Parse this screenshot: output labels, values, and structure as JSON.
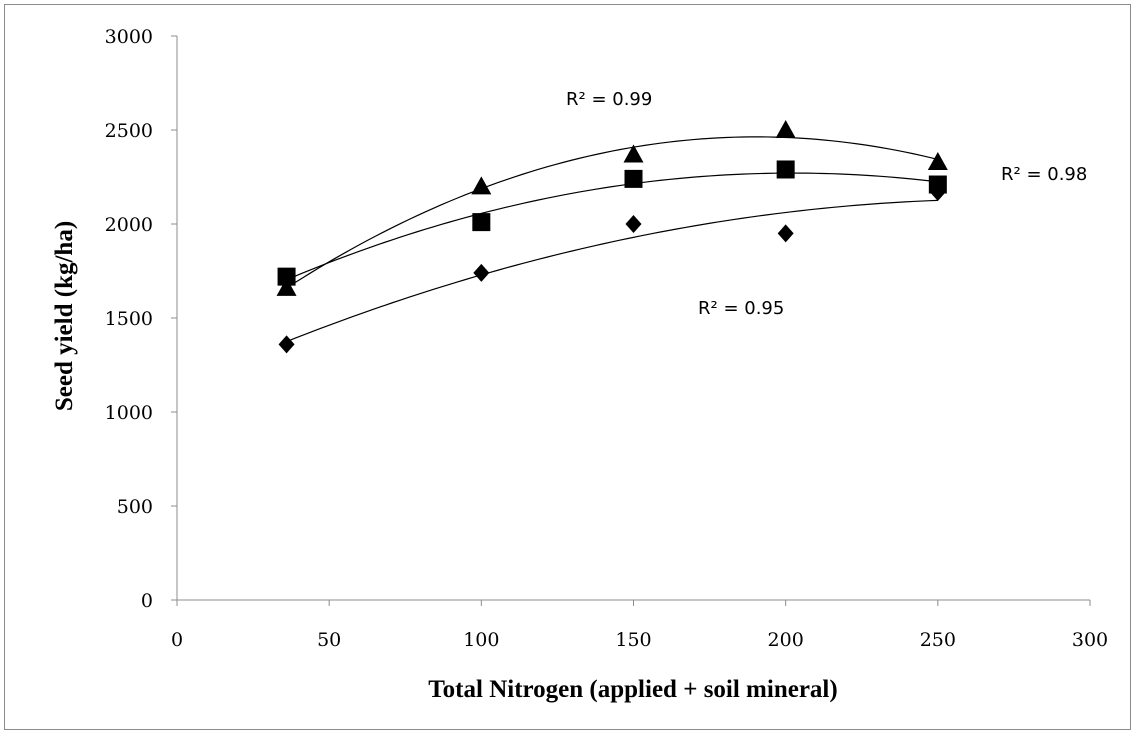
{
  "chart_data": {
    "type": "scatter",
    "xlabel": "Total Nitrogen (applied + soil mineral)",
    "ylabel": "Seed yield (kg/ha)",
    "xlim": [
      0,
      300
    ],
    "ylim": [
      0,
      3000
    ],
    "xticks": [
      "0",
      "50",
      "100",
      "150",
      "200",
      "250",
      "300"
    ],
    "yticks": [
      "0",
      "500",
      "1000",
      "1500",
      "2000",
      "2500",
      "3000"
    ],
    "grid": false,
    "series": [
      {
        "marker": "triangle",
        "x": [
          36,
          100,
          150,
          200,
          250
        ],
        "y": [
          1660,
          2200,
          2370,
          2500,
          2330
        ],
        "trendline": "quadratic",
        "r2_label": "R² = 0.99"
      },
      {
        "marker": "square",
        "x": [
          36,
          100,
          150,
          200,
          250
        ],
        "y": [
          1720,
          2010,
          2240,
          2290,
          2210
        ],
        "trendline": "quadratic",
        "r2_label": "R² = 0.98"
      },
      {
        "marker": "diamond",
        "x": [
          36,
          100,
          150,
          200,
          250
        ],
        "y": [
          1360,
          1740,
          2000,
          1950,
          2170
        ],
        "trendline": "quadratic",
        "r2_label": "R² = 0.95"
      }
    ]
  }
}
